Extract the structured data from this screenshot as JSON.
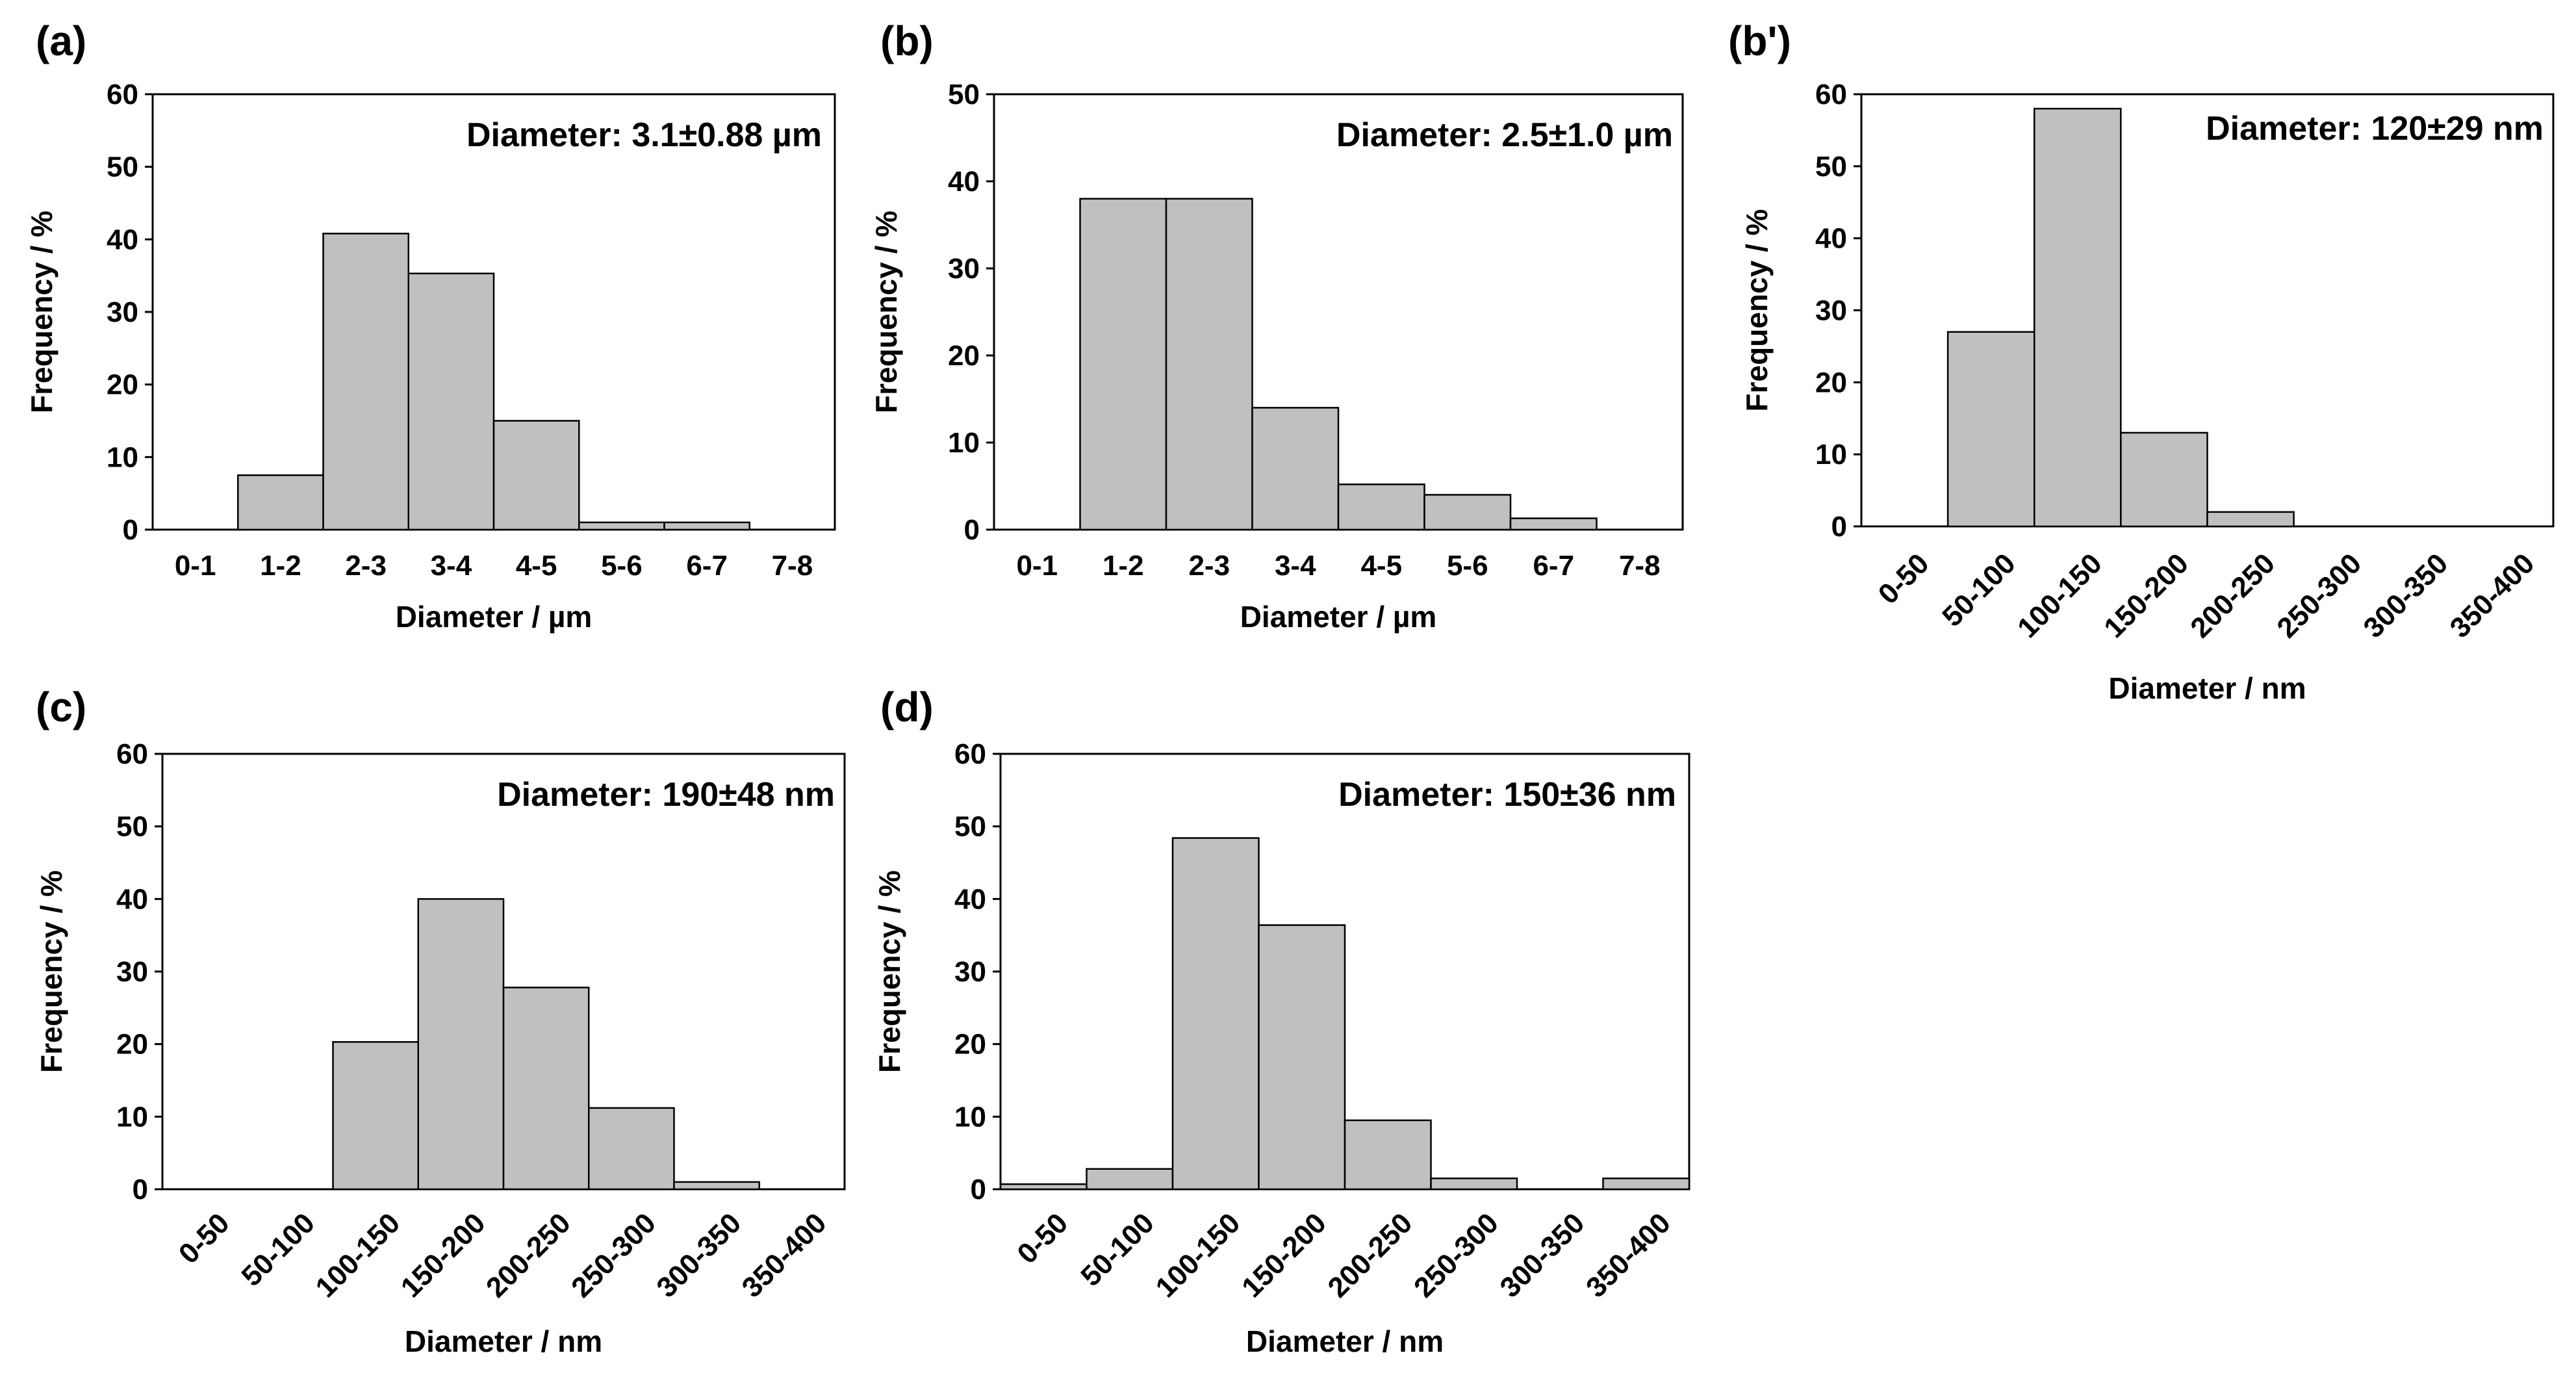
{
  "colors": {
    "bar_fill": "#c0c0c0",
    "bar_stroke": "#000000",
    "axis": "#000000",
    "background": "#ffffff"
  },
  "chart_data": [
    {
      "panel": "(a)",
      "type": "bar",
      "annotation": "Diameter: 3.1±0.88 µm",
      "xlabel": "Diameter / µm",
      "ylabel": "Frequency / %",
      "categories": [
        "0-1",
        "1-2",
        "2-3",
        "3-4",
        "4-5",
        "5-6",
        "6-7",
        "7-8"
      ],
      "values": [
        0,
        7.5,
        40.8,
        35.3,
        15,
        1,
        1,
        0
      ],
      "ylim": [
        0,
        60
      ],
      "yticks": [
        "0",
        "10",
        "20",
        "30",
        "40",
        "50",
        "60"
      ],
      "rotate_xticks": false
    },
    {
      "panel": "(b)",
      "type": "bar",
      "annotation": "Diameter: 2.5±1.0 µm",
      "xlabel": "Diameter / µm",
      "ylabel": "Frequency / %",
      "categories": [
        "0-1",
        "1-2",
        "2-3",
        "3-4",
        "4-5",
        "5-6",
        "6-7",
        "7-8"
      ],
      "values": [
        0,
        38,
        38,
        14,
        5.2,
        4,
        1.3,
        0
      ],
      "ylim": [
        0,
        50
      ],
      "yticks": [
        "0",
        "10",
        "20",
        "30",
        "40",
        "50"
      ],
      "rotate_xticks": false
    },
    {
      "panel": "(b')",
      "type": "bar",
      "annotation": "Diameter: 120±29 nm",
      "xlabel": "Diameter / nm",
      "ylabel": "Frequency / %",
      "categories": [
        "0-50",
        "50-100",
        "100-150",
        "150-200",
        "200-250",
        "250-300",
        "300-350",
        "350-400"
      ],
      "values": [
        0,
        27,
        58,
        13,
        2,
        0,
        0,
        0
      ],
      "ylim": [
        0,
        60
      ],
      "yticks": [
        "0",
        "10",
        "20",
        "30",
        "40",
        "50",
        "60"
      ],
      "rotate_xticks": true
    },
    {
      "panel": "(c)",
      "type": "bar",
      "annotation": "Diameter: 190±48 nm",
      "xlabel": "Diameter / nm",
      "ylabel": "Frequency / %",
      "categories": [
        "0-50",
        "50-100",
        "100-150",
        "150-200",
        "200-250",
        "250-300",
        "300-350",
        "350-400"
      ],
      "values": [
        0,
        0,
        20.3,
        40,
        27.8,
        11.2,
        1,
        0
      ],
      "ylim": [
        0,
        60
      ],
      "yticks": [
        "0",
        "10",
        "20",
        "30",
        "40",
        "50",
        "60"
      ],
      "rotate_xticks": true
    },
    {
      "panel": "(d)",
      "type": "bar",
      "annotation": "Diameter: 150±36 nm",
      "xlabel": "Diameter / nm",
      "ylabel": "Frequency / %",
      "categories": [
        "0-50",
        "50-100",
        "100-150",
        "150-200",
        "200-250",
        "250-300",
        "300-350",
        "350-400"
      ],
      "values": [
        0.7,
        2.8,
        48.4,
        36.4,
        9.5,
        1.5,
        0,
        1.5
      ],
      "ylim": [
        0,
        60
      ],
      "yticks": [
        "0",
        "10",
        "20",
        "30",
        "40",
        "50",
        "60"
      ],
      "rotate_xticks": true
    }
  ]
}
